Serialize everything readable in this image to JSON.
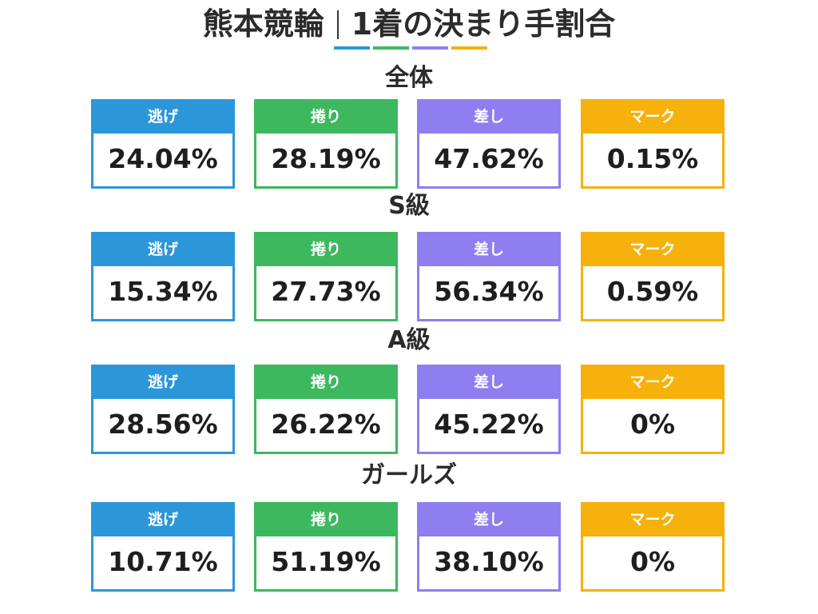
{
  "title_left": "熊本競輪",
  "title_right": "1着の決まり手割合",
  "colors": {
    "nige": "#2b97d9",
    "makuri": "#3db85e",
    "sashi": "#8f7ef0",
    "mark": "#f6b10c"
  },
  "chart_data": {
    "type": "table",
    "title": "熊本競輪 1着の決まり手割合",
    "columns": [
      "逃げ",
      "捲り",
      "差し",
      "マーク"
    ],
    "groups": [
      {
        "label": "全体",
        "values": [
          "24.04%",
          "28.19%",
          "47.62%",
          "0.15%"
        ]
      },
      {
        "label": "S級",
        "values": [
          "15.34%",
          "27.73%",
          "56.34%",
          "0.59%"
        ]
      },
      {
        "label": "A級",
        "values": [
          "28.56%",
          "26.22%",
          "45.22%",
          "0%"
        ]
      },
      {
        "label": "ガールズ",
        "values": [
          "10.71%",
          "51.19%",
          "38.10%",
          "0%"
        ]
      }
    ]
  }
}
